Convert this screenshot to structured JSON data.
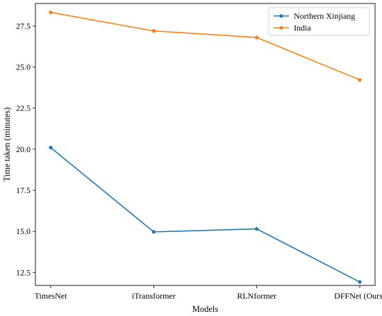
{
  "chart_data": {
    "type": "line",
    "categories": [
      "TimesNet",
      "iTransformer",
      "RLNformer",
      "DFFNet (Ours)"
    ],
    "series": [
      {
        "name": "Northern Xinjiang",
        "color": "#1f77b4",
        "values": [
          20.1,
          14.97,
          15.15,
          11.92
        ]
      },
      {
        "name": "India",
        "color": "#ff7f0e",
        "values": [
          28.33,
          27.2,
          26.8,
          24.22
        ]
      }
    ],
    "xlabel": "Models",
    "ylabel": "Time taken (minutes)",
    "ylim": [
      11.71,
      28.87
    ],
    "yticks": [
      12.5,
      15.0,
      17.5,
      20.0,
      22.5,
      25.0,
      27.5
    ],
    "ytick_labels": [
      "12.5",
      "15.0",
      "17.5",
      "20.0",
      "22.5",
      "25.0",
      "27.5"
    ],
    "grid": false,
    "legend_position": "top-right"
  }
}
